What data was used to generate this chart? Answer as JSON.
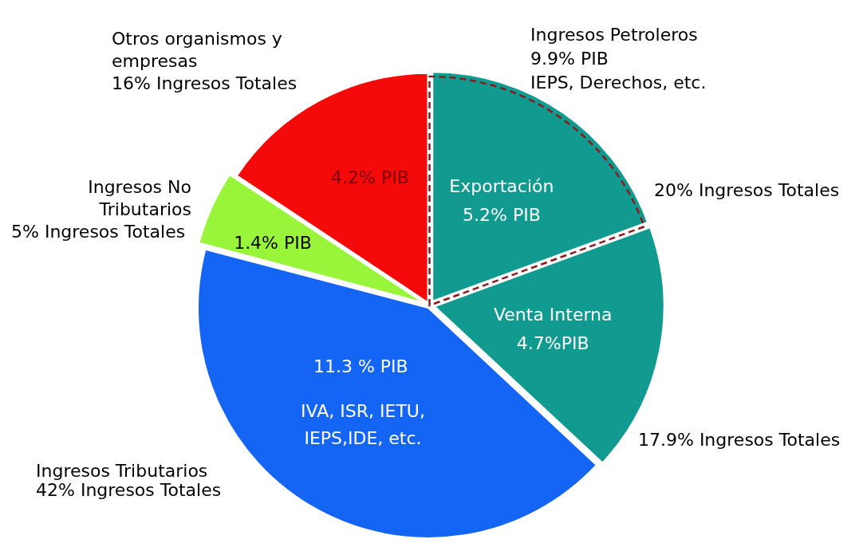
{
  "chart_data": {
    "type": "pie",
    "categories": [
      "Exportación",
      "Venta Interna",
      "Ingresos Tributarios",
      "Ingresos No Tributarios",
      "Otros organismos y empresas"
    ],
    "values": [
      5.2,
      4.7,
      11.3,
      1.4,
      4.2
    ],
    "colors": [
      "#109a90",
      "#109a90",
      "#1565f5",
      "#98f53a",
      "#f50a0a"
    ],
    "value_labels": [
      "5.2% PIB",
      "4.7%PIB",
      "11.3 % PIB",
      "1.4% PIB",
      "4.2% PIB"
    ],
    "annotations": [
      "20% Ingresos Totales",
      "17.9% Ingresos Totales",
      "42% Ingresos Totales",
      "5% Ingresos Totales",
      "16% Ingresos Totales",
      "Ingresos Petroleros",
      "9.9% PIB",
      "IEPS, Derechos, etc.",
      "IVA, ISR, IETU,",
      "IEPS,IDE, etc."
    ],
    "legend": false
  }
}
